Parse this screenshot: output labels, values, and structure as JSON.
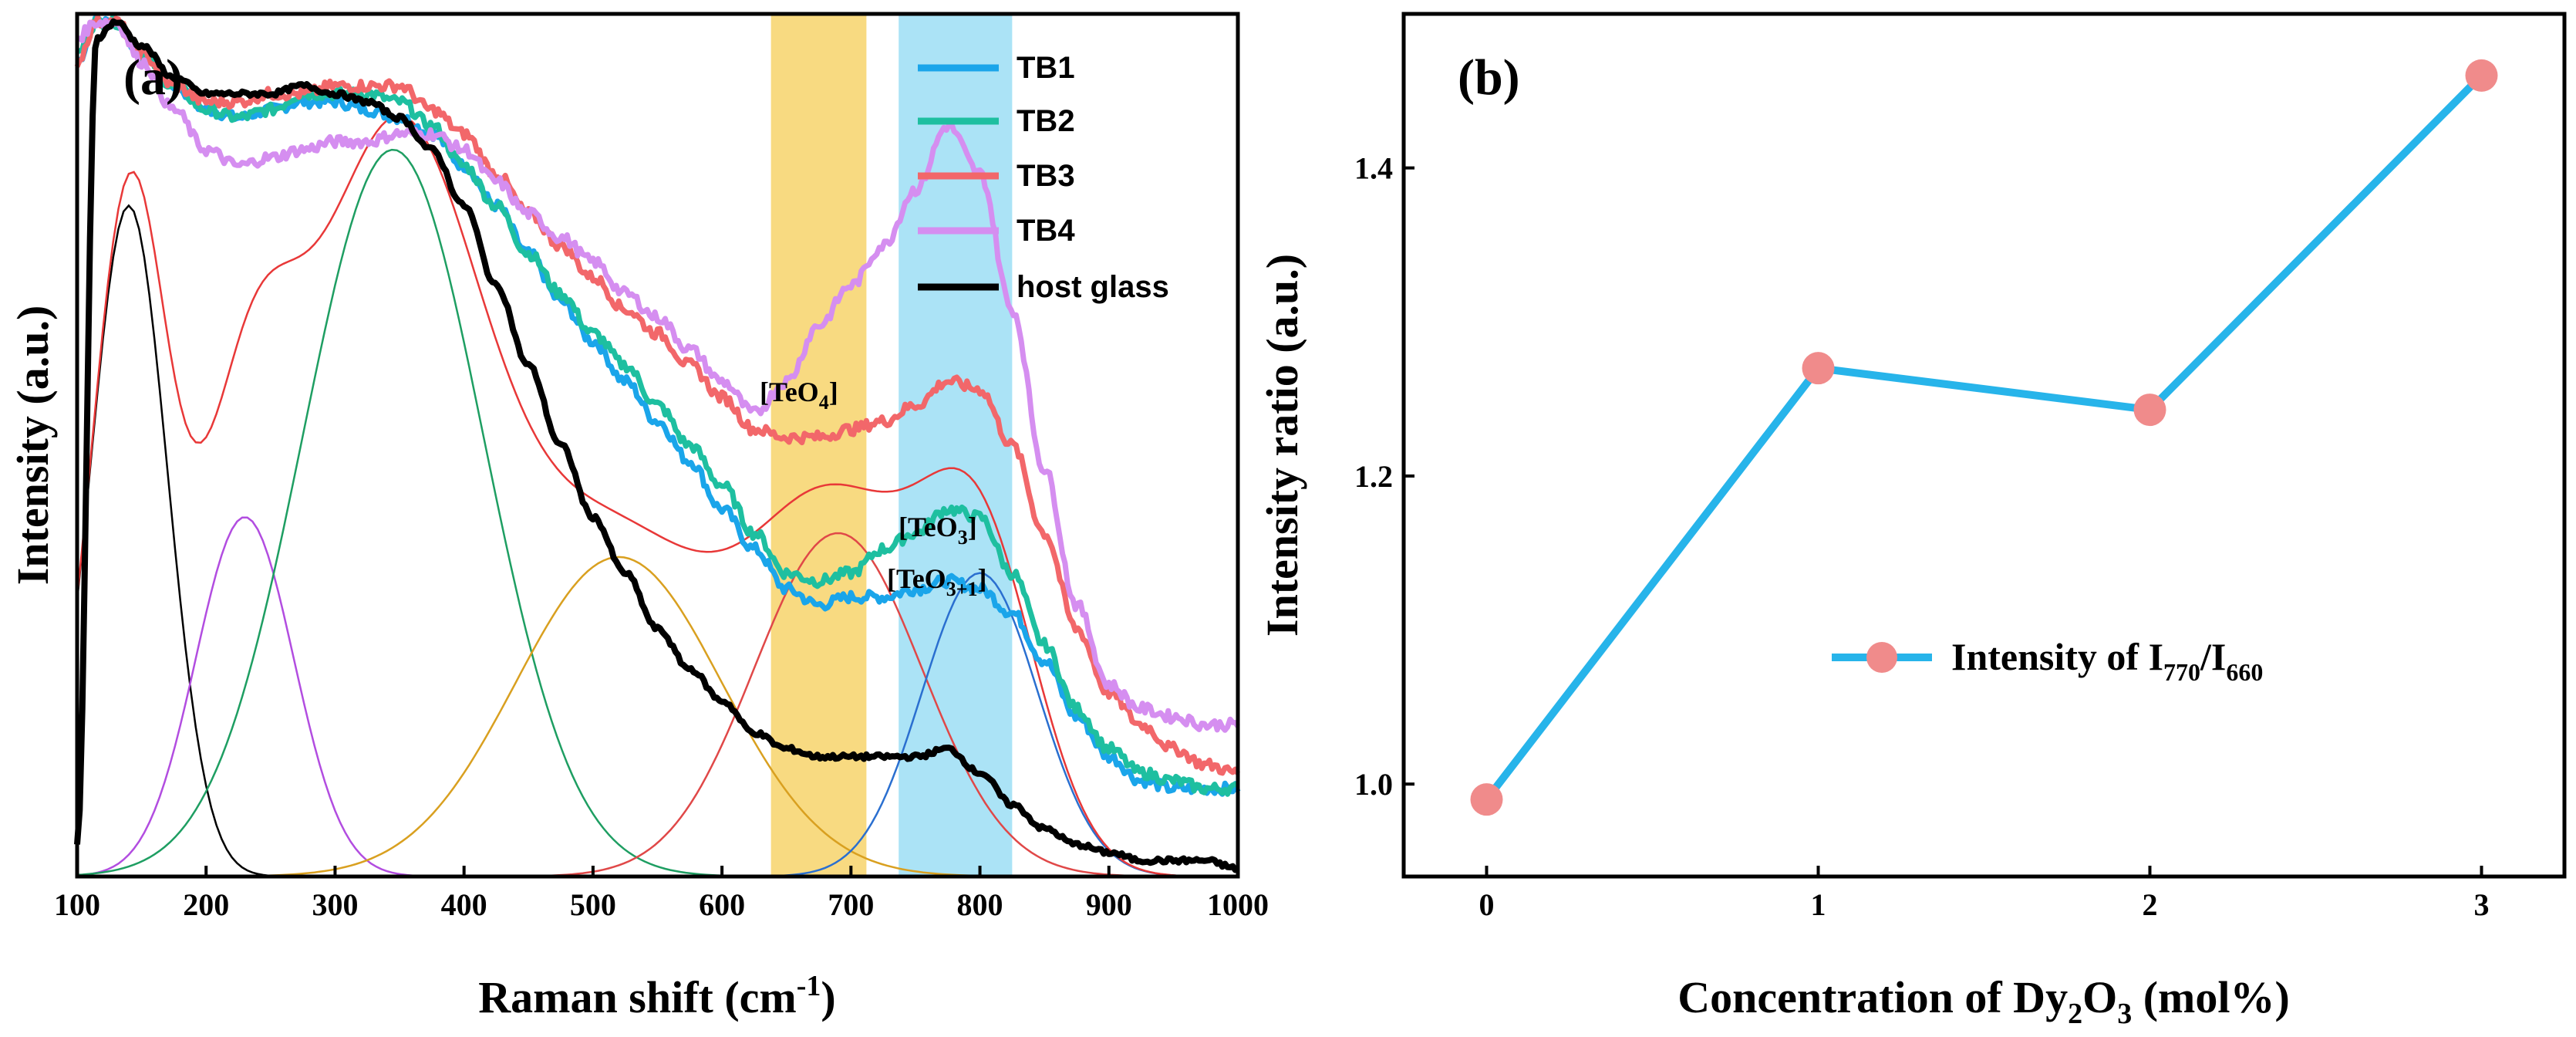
{
  "colors": {
    "TB1": "#1aa5ea",
    "TB2": "#1ebfa0",
    "TB3": "#f2676a",
    "TB4": "#d58ef0",
    "host": "#000000",
    "bandTeO4": "#f7d36b",
    "bandTeO3": "#9cdef5",
    "ratioLine": "#27b4ea",
    "ratioMarker": "#f08b8b"
  },
  "chart_data": [
    {
      "panel": "(a)",
      "type": "line",
      "xlabel_main": "Raman shift (cm",
      "xlabel_sup": "-1",
      "xlabel_close": ")",
      "ylabel": "Intensity (a.u.)",
      "xlim": [
        100,
        1000
      ],
      "ylim": [
        0,
        1.08
      ],
      "xticks": [
        "100",
        "200",
        "300",
        "400",
        "500",
        "600",
        "700",
        "800",
        "900",
        "1000"
      ],
      "bands": [
        {
          "name": "TeO4 band",
          "x_range": [
            638,
            712
          ],
          "color": "#f7d36b"
        },
        {
          "name": "TeO3 band",
          "x_range": [
            737,
            825
          ],
          "color": "#9cdef5"
        }
      ],
      "annotations": {
        "teo4": {
          "base": "[TeO",
          "sub": "4",
          "close": "]"
        },
        "teo3": {
          "base": "[TeO",
          "sub": "3",
          "close": "]"
        },
        "teo31": {
          "base": "[TeO",
          "sub": "3+1",
          "close": "]"
        }
      },
      "series": [
        {
          "name": "TB1",
          "x": [
            100,
            115,
            130,
            150,
            175,
            200,
            225,
            250,
            275,
            300,
            325,
            350,
            375,
            400,
            425,
            450,
            475,
            500,
            525,
            550,
            575,
            600,
            625,
            650,
            675,
            700,
            725,
            750,
            775,
            800,
            825,
            850,
            875,
            900,
            925,
            950,
            975,
            1000
          ],
          "y": [
            1.02,
            1.07,
            1.07,
            1.03,
            0.99,
            0.96,
            0.95,
            0.96,
            0.97,
            0.97,
            0.96,
            0.95,
            0.93,
            0.89,
            0.84,
            0.78,
            0.72,
            0.67,
            0.62,
            0.57,
            0.52,
            0.46,
            0.41,
            0.36,
            0.34,
            0.35,
            0.35,
            0.36,
            0.37,
            0.36,
            0.33,
            0.27,
            0.2,
            0.15,
            0.12,
            0.11,
            0.11,
            0.11
          ]
        },
        {
          "name": "TB2",
          "x": [
            100,
            115,
            130,
            150,
            175,
            200,
            225,
            250,
            275,
            300,
            325,
            350,
            375,
            400,
            425,
            450,
            475,
            500,
            525,
            550,
            575,
            600,
            625,
            650,
            675,
            700,
            725,
            750,
            775,
            800,
            825,
            850,
            875,
            900,
            925,
            950,
            975,
            1000
          ],
          "y": [
            1.03,
            1.07,
            1.07,
            1.03,
            0.99,
            0.96,
            0.95,
            0.96,
            0.98,
            0.98,
            0.98,
            0.97,
            0.94,
            0.89,
            0.84,
            0.78,
            0.73,
            0.68,
            0.64,
            0.59,
            0.54,
            0.49,
            0.43,
            0.38,
            0.37,
            0.38,
            0.41,
            0.43,
            0.46,
            0.45,
            0.38,
            0.29,
            0.21,
            0.16,
            0.13,
            0.12,
            0.11,
            0.11
          ]
        },
        {
          "name": "TB3",
          "x": [
            100,
            115,
            130,
            150,
            175,
            200,
            225,
            250,
            275,
            300,
            325,
            350,
            375,
            400,
            425,
            450,
            475,
            500,
            525,
            550,
            575,
            600,
            625,
            650,
            675,
            700,
            725,
            750,
            775,
            800,
            825,
            850,
            875,
            900,
            925,
            950,
            975,
            1000
          ],
          "y": [
            1.02,
            1.07,
            1.07,
            1.03,
            0.99,
            0.97,
            0.97,
            0.98,
            0.98,
            0.99,
            0.99,
            0.99,
            0.96,
            0.93,
            0.88,
            0.83,
            0.79,
            0.75,
            0.71,
            0.68,
            0.64,
            0.6,
            0.56,
            0.55,
            0.55,
            0.56,
            0.57,
            0.59,
            0.62,
            0.61,
            0.54,
            0.43,
            0.31,
            0.23,
            0.19,
            0.16,
            0.14,
            0.13
          ]
        },
        {
          "name": "TB4",
          "x": [
            100,
            115,
            130,
            150,
            175,
            200,
            225,
            250,
            275,
            300,
            325,
            350,
            375,
            400,
            425,
            450,
            475,
            500,
            525,
            550,
            575,
            600,
            625,
            650,
            675,
            700,
            725,
            750,
            775,
            800,
            825,
            850,
            875,
            900,
            925,
            950,
            975,
            1000
          ],
          "y": [
            1.05,
            1.07,
            1.07,
            1.02,
            0.96,
            0.91,
            0.89,
            0.9,
            0.91,
            0.92,
            0.92,
            0.93,
            0.93,
            0.91,
            0.87,
            0.83,
            0.8,
            0.77,
            0.73,
            0.7,
            0.66,
            0.62,
            0.58,
            0.62,
            0.69,
            0.74,
            0.79,
            0.86,
            0.94,
            0.88,
            0.71,
            0.51,
            0.34,
            0.24,
            0.21,
            0.2,
            0.19,
            0.19
          ]
        },
        {
          "name": "host glass",
          "x": [
            100,
            115,
            130,
            150,
            175,
            200,
            225,
            250,
            275,
            300,
            325,
            350,
            375,
            400,
            425,
            450,
            475,
            500,
            525,
            550,
            575,
            600,
            625,
            650,
            675,
            700,
            725,
            750,
            775,
            800,
            825,
            850,
            875,
            900,
            925,
            950,
            975,
            1000
          ],
          "y": [
            0.04,
            1.05,
            1.07,
            1.04,
            1.0,
            0.98,
            0.98,
            0.98,
            0.99,
            0.98,
            0.97,
            0.95,
            0.91,
            0.84,
            0.74,
            0.64,
            0.54,
            0.45,
            0.38,
            0.31,
            0.26,
            0.22,
            0.18,
            0.16,
            0.15,
            0.15,
            0.15,
            0.15,
            0.16,
            0.13,
            0.09,
            0.06,
            0.04,
            0.03,
            0.02,
            0.02,
            0.02,
            0.01
          ]
        }
      ],
      "fit_peaks": [
        {
          "center": 140,
          "amplitude": 0.84,
          "sigma": 30,
          "color": "#000000"
        },
        {
          "center": 230,
          "amplitude": 0.45,
          "sigma": 38,
          "color": "#b24de0"
        },
        {
          "center": 345,
          "amplitude": 0.91,
          "sigma": 70,
          "color": "#1e9e62"
        },
        {
          "center": 520,
          "amplitude": 0.4,
          "sigma": 80,
          "color": "#d9a020"
        },
        {
          "center": 690,
          "amplitude": 0.43,
          "sigma": 65,
          "color": "#e04848"
        },
        {
          "center": 800,
          "amplitude": 0.38,
          "sigma": 45,
          "color": "#2a6fd0"
        }
      ],
      "envelope_fit": {
        "color": "#e83838"
      }
    },
    {
      "panel": "(b)",
      "type": "line",
      "xlabel_main": "Concentration of Dy",
      "xlabel_sub": "2",
      "xlabel_mid": "O",
      "xlabel_sub2": "3",
      "xlabel_end": " (mol%)",
      "ylabel": "Intensity ratio (a.u.)",
      "xlim": [
        -0.25,
        3.25
      ],
      "ylim": [
        0.94,
        1.5
      ],
      "xticks": [
        "0",
        "1",
        "2",
        "3"
      ],
      "yticks": [
        "1.0",
        "1.2",
        "1.4"
      ],
      "ytick_values": [
        1.0,
        1.2,
        1.4
      ],
      "legend": {
        "main": "Intensity of I",
        "sub1": "770",
        "slash": "/I",
        "sub2": "660"
      },
      "series": [
        {
          "name": "Intensity of I770/I660",
          "x": [
            0,
            1,
            2,
            3
          ],
          "y": [
            0.99,
            1.27,
            1.243,
            1.46
          ]
        }
      ]
    }
  ]
}
